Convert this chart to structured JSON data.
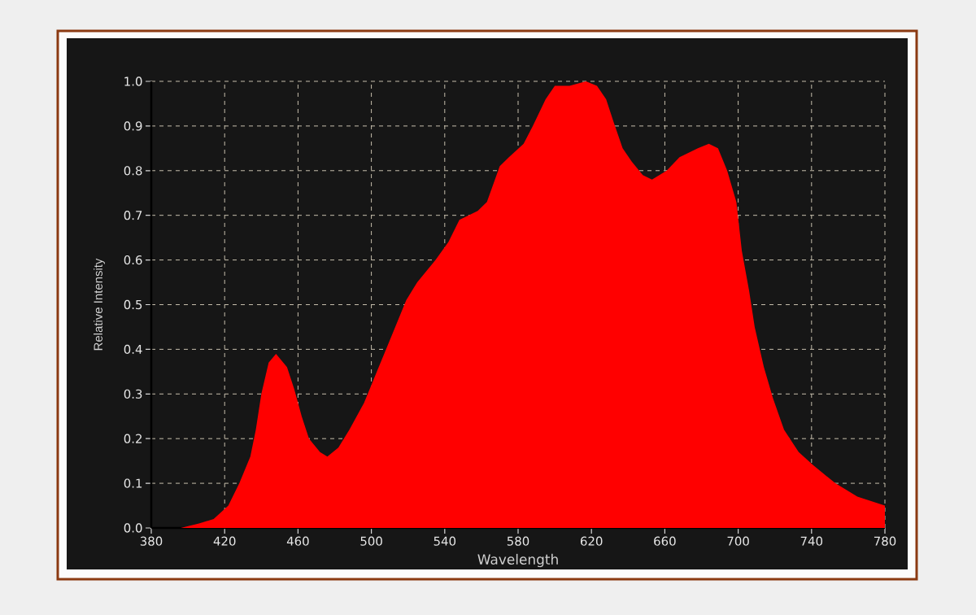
{
  "chart_data": {
    "type": "area",
    "xlabel": "Wavelength",
    "ylabel": "Relative Intensity",
    "color": "#ff0000",
    "x": [
      396,
      406,
      414,
      422,
      428,
      434,
      437,
      440,
      444,
      448,
      454,
      458,
      462,
      466,
      472,
      476,
      482,
      488,
      496,
      503,
      510,
      519,
      525,
      535,
      542,
      548,
      558,
      563,
      570,
      575,
      583,
      588,
      595,
      600,
      608,
      617,
      623,
      628,
      632,
      637,
      642,
      648,
      653,
      661,
      668,
      678,
      684,
      689,
      694,
      699,
      702,
      706,
      709,
      714,
      719,
      725,
      733,
      741,
      753,
      765,
      780
    ],
    "values": [
      0,
      0.01,
      0.02,
      0.05,
      0.1,
      0.16,
      0.22,
      0.3,
      0.37,
      0.39,
      0.36,
      0.31,
      0.25,
      0.2,
      0.17,
      0.16,
      0.18,
      0.22,
      0.28,
      0.35,
      0.42,
      0.51,
      0.55,
      0.6,
      0.64,
      0.69,
      0.71,
      0.73,
      0.81,
      0.83,
      0.86,
      0.9,
      0.96,
      0.99,
      0.99,
      1.0,
      0.99,
      0.96,
      0.91,
      0.85,
      0.82,
      0.79,
      0.78,
      0.8,
      0.83,
      0.85,
      0.86,
      0.85,
      0.8,
      0.73,
      0.62,
      0.53,
      0.45,
      0.36,
      0.29,
      0.22,
      0.17,
      0.14,
      0.1,
      0.07,
      0.05
    ],
    "xlim": [
      380,
      780
    ],
    "ylim": [
      0,
      1
    ],
    "xticks": [
      380,
      420,
      460,
      500,
      540,
      580,
      620,
      660,
      700,
      740,
      780
    ],
    "yticks": [
      {
        "value": 0,
        "label": "0.0"
      },
      0.1,
      0.2,
      0.3,
      0.4,
      0.5,
      0.6,
      0.7,
      0.8,
      0.9,
      {
        "value": 1,
        "label": "1.0"
      }
    ],
    "grid": true
  }
}
